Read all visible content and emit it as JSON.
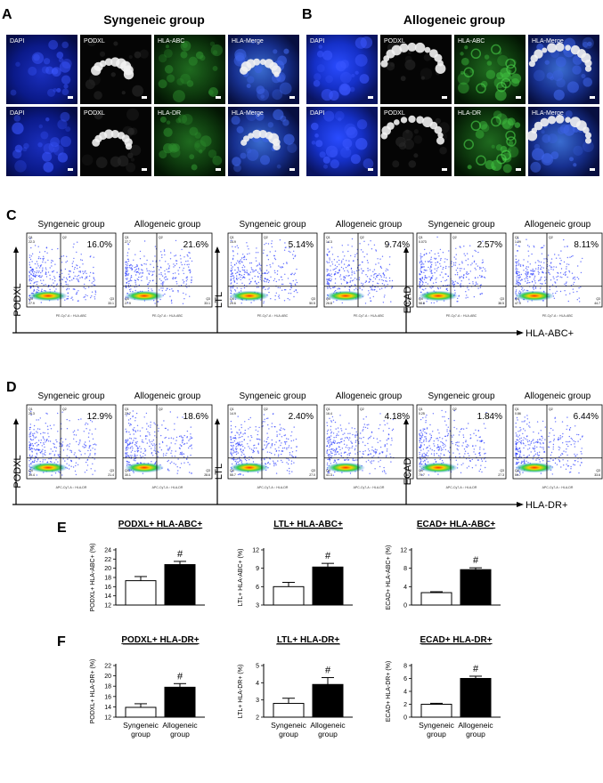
{
  "panels": {
    "A": {
      "letter": "A",
      "title": "Syngeneic group",
      "rows": [
        [
          "DAPI",
          "PODXL",
          "HLA-ABC",
          "HLA-Merge"
        ],
        [
          "DAPI",
          "PODXL",
          "HLA-DR",
          "HLA-Merge"
        ]
      ]
    },
    "B": {
      "letter": "B",
      "title": "Allogeneic group",
      "rows": [
        [
          "DAPI",
          "PODXL",
          "HLA-ABC",
          "HLA-Merge"
        ],
        [
          "DAPI",
          "PODXL",
          "HLA-DR",
          "HLA-Merge"
        ]
      ]
    }
  },
  "flow": {
    "C": {
      "letter": "C",
      "axis_label": "HLA-ABC+",
      "tick_label": "PE-Cy7-A :: HLA-ABC",
      "groups": [
        {
          "ylabel": "PODXL",
          "plots": [
            {
              "title": "Syngeneic group",
              "pct": "16.0%",
              "q": {
                "q1": "22.3",
                "q2": "16.0",
                "q3": "33.1",
                "q4": "27.9"
              }
            },
            {
              "title": "Allogeneic group",
              "pct": "21.6%",
              "q": {
                "q1": "27.7",
                "q2": "21.6",
                "q3": "33.1",
                "q4": "27.9"
              }
            }
          ]
        },
        {
          "ylabel": "LTL",
          "plots": [
            {
              "title": "Syngeneic group",
              "pct": "5.14%",
              "q": {
                "q1": "14.9",
                "q2": "5.14",
                "q3": "50.5",
                "q4": "29.6"
              }
            },
            {
              "title": "Allogeneic group",
              "pct": "9.74%",
              "q": {
                "q1": "14.3",
                "q2": "9.74",
                "q3": "49.1",
                "q4": "26.8"
              }
            }
          ]
        },
        {
          "ylabel": "ECAD",
          "plots": [
            {
              "title": "Syngeneic group",
              "pct": "2.57%",
              "q": {
                "q1": "0.073",
                "q2": "2.57",
                "q3": "38.5",
                "q4": "58.8"
              }
            },
            {
              "title": "Allogeneic group",
              "pct": "8.11%",
              "q": {
                "q1": "1.29",
                "q2": "8.11",
                "q3": "44.7",
                "q4": "47.9"
              }
            }
          ]
        }
      ]
    },
    "D": {
      "letter": "D",
      "axis_label": "HLA-DR+",
      "tick_label": "APC-Cy7-A :: HLA-DR",
      "groups": [
        {
          "ylabel": "PODXL",
          "plots": [
            {
              "title": "Syngeneic group",
              "pct": "12.9%",
              "q": {
                "q1": "26.3",
                "q2": "12.9",
                "q3": "21.4",
                "q4": "39.4"
              }
            },
            {
              "title": "Allogeneic group",
              "pct": "18.6%",
              "q": {
                "q1": "22.7",
                "q2": "18.6",
                "q3": "28.6",
                "q4": "30.1"
              }
            }
          ]
        },
        {
          "ylabel": "LTL",
          "plots": [
            {
              "title": "Syngeneic group",
              "pct": "2.40%",
              "q": {
                "q1": "14.9",
                "q2": "2.40",
                "q3": "27.0",
                "q4": "55.7"
              }
            },
            {
              "title": "Allogeneic group",
              "pct": "4.18%",
              "q": {
                "q1": "16.4",
                "q2": "4.18",
                "q3": "38.2",
                "q4": "41.3"
              }
            }
          ]
        },
        {
          "ylabel": "ECAD",
          "plots": [
            {
              "title": "Syngeneic group",
              "pct": "1.84%",
              "q": {
                "q1": "0.25",
                "q2": "1.84",
                "q3": "27.3",
                "q4": "70.7"
              }
            },
            {
              "title": "Allogeneic group",
              "pct": "6.44%",
              "q": {
                "q1": "0.86",
                "q2": "6.44",
                "q3": "33.6",
                "q4": "59.7"
              }
            }
          ]
        }
      ]
    }
  },
  "bars": {
    "E": {
      "letter": "E"
    },
    "F": {
      "letter": "F",
      "xticks": [
        "Syngeneic\ngroup",
        "Allogeneic\ngroup"
      ]
    }
  },
  "chart_data": [
    {
      "type": "bar",
      "title": "PODXL+ HLA-ABC+",
      "ylabel": "PODXL+ HLA-ABC+ (%)",
      "categories": [
        "Syngeneic group",
        "Allogeneic group"
      ],
      "values": [
        17.3,
        20.8
      ],
      "errors": [
        0.9,
        0.7
      ],
      "ylim": [
        12,
        24
      ],
      "yticks": [
        12,
        14,
        16,
        18,
        20,
        22,
        24
      ],
      "annotation": "#"
    },
    {
      "type": "bar",
      "title": "LTL+ HLA-ABC+",
      "ylabel": "LTL+ HLA-ABC+ (%)",
      "categories": [
        "Syngeneic group",
        "Allogeneic group"
      ],
      "values": [
        6.0,
        9.2
      ],
      "errors": [
        0.7,
        0.6
      ],
      "ylim": [
        3,
        12
      ],
      "yticks": [
        3,
        6,
        9,
        12
      ],
      "annotation": "#"
    },
    {
      "type": "bar",
      "title": "ECAD+ HLA-ABC+",
      "ylabel": "ECAD+ HLA-ABC+ (%)",
      "categories": [
        "Syngeneic group",
        "Allogeneic group"
      ],
      "values": [
        2.7,
        7.7
      ],
      "errors": [
        0.2,
        0.4
      ],
      "ylim": [
        0,
        12
      ],
      "yticks": [
        0,
        4,
        8,
        12
      ],
      "annotation": "#"
    },
    {
      "type": "bar",
      "title": "PODXL+ HLA-DR+",
      "ylabel": "PODXL+ HLA-DR+ (%)",
      "categories": [
        "Syngeneic group",
        "Allogeneic group"
      ],
      "values": [
        13.9,
        17.8
      ],
      "errors": [
        0.7,
        0.7
      ],
      "ylim": [
        12,
        22
      ],
      "yticks": [
        12,
        14,
        16,
        18,
        20,
        22
      ],
      "annotation": "#"
    },
    {
      "type": "bar",
      "title": "LTL+ HLA-DR+",
      "ylabel": "LTL+ HLA-DR+ (%)",
      "categories": [
        "Syngeneic group",
        "Allogeneic group"
      ],
      "values": [
        2.8,
        3.9
      ],
      "errors": [
        0.3,
        0.4
      ],
      "ylim": [
        2,
        5
      ],
      "yticks": [
        2,
        3,
        4,
        5
      ],
      "annotation": "#"
    },
    {
      "type": "bar",
      "title": "ECAD+ HLA-DR+",
      "ylabel": "ECAD+ HLA-DR+ (%)",
      "categories": [
        "Syngeneic group",
        "Allogeneic group"
      ],
      "values": [
        2.0,
        6.0
      ],
      "errors": [
        0.15,
        0.35
      ],
      "ylim": [
        0,
        8
      ],
      "yticks": [
        0,
        2,
        4,
        6,
        8
      ],
      "annotation": "#"
    }
  ]
}
